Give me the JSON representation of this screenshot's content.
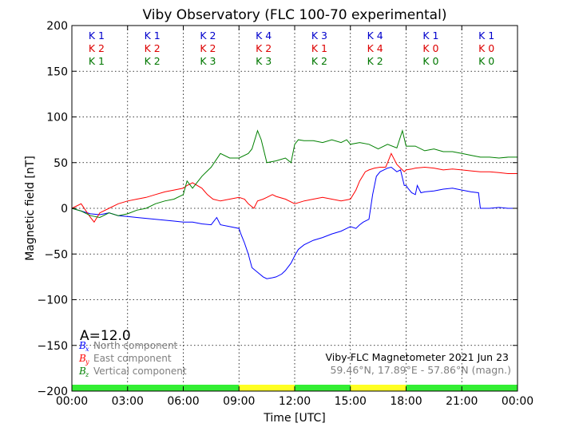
{
  "chart_data": {
    "type": "line",
    "title": "Viby Observatory (FLC 100-70 experimental)",
    "xlabel": "Time [UTC]",
    "ylabel": "Magnetic field [nT]",
    "xlim": [
      0,
      24
    ],
    "ylim": [
      -200,
      200
    ],
    "grid": true,
    "x_tick_labels": [
      "00:00",
      "03:00",
      "06:00",
      "09:00",
      "12:00",
      "15:00",
      "18:00",
      "21:00",
      "00:00"
    ],
    "y_ticks": [
      200,
      150,
      100,
      50,
      0,
      -50,
      -100,
      -150,
      -200
    ],
    "y_tick_labels": [
      "200",
      "150",
      "100",
      "50",
      "0",
      "−50",
      "−100",
      "−150",
      "−200"
    ],
    "k_index_rows": [
      {
        "color": "#0000cc",
        "values": [
          "K 1",
          "K 1",
          "K 2",
          "K 4",
          "K 3",
          "K 4",
          "K 1",
          "K 1"
        ]
      },
      {
        "color": "#dd0000",
        "values": [
          "K 2",
          "K 2",
          "K 2",
          "K 2",
          "K 1",
          "K 4",
          "K 0",
          "K 0"
        ]
      },
      {
        "color": "#007700",
        "values": [
          "K 1",
          "K 2",
          "K 3",
          "K 3",
          "K 2",
          "K 2",
          "K 0",
          "K 0"
        ]
      }
    ],
    "activity_bar": [
      {
        "from": 0,
        "to": 9,
        "color": "#33ee33"
      },
      {
        "from": 9,
        "to": 12,
        "color": "#ffff22"
      },
      {
        "from": 12,
        "to": 15,
        "color": "#33ee33"
      },
      {
        "from": 15,
        "to": 18,
        "color": "#ffff22"
      },
      {
        "from": 18,
        "to": 24,
        "color": "#33ee33"
      }
    ],
    "a_index": "A=12.0",
    "legend": [
      {
        "symbol": "B",
        "sub": "x",
        "text": "North component",
        "color": "#0000ff"
      },
      {
        "symbol": "B",
        "sub": "y",
        "text": "East component",
        "color": "#ff0000"
      },
      {
        "symbol": "B",
        "sub": "z",
        "text": "Vertical component",
        "color": "#008000"
      }
    ],
    "info_line1": "Viby-FLC Magnetometer 2021 Jun 23",
    "info_line2": "59.46°N, 17.89°E - 57.86°N (magn.)",
    "series": [
      {
        "name": "North component",
        "color": "#0000ff",
        "x": [
          0,
          0.5,
          1,
          1.5,
          2,
          2.5,
          3,
          3.5,
          4,
          4.5,
          5,
          5.5,
          6,
          6.5,
          7,
          7.5,
          7.8,
          8,
          8.5,
          9,
          9.1,
          9.3,
          9.5,
          9.7,
          10,
          10.3,
          10.5,
          10.8,
          11,
          11.3,
          11.5,
          11.8,
          12,
          12.2,
          12.5,
          13,
          13.5,
          14,
          14.5,
          14.8,
          15,
          15.3,
          15.5,
          15.7,
          16,
          16.2,
          16.4,
          16.6,
          16.8,
          17,
          17.2,
          17.5,
          17.7,
          17.9,
          18,
          18.1,
          18.3,
          18.5,
          18.6,
          18.8,
          19,
          19.5,
          20,
          20.5,
          21,
          21.5,
          21.9,
          22,
          22.5,
          23,
          23.5,
          24
        ],
        "y": [
          0,
          -3,
          -6,
          -7,
          -5,
          -8,
          -9,
          -10,
          -11,
          -12,
          -13,
          -14,
          -15,
          -15,
          -17,
          -18,
          -10,
          -18,
          -20,
          -22,
          -28,
          -38,
          -50,
          -65,
          -70,
          -75,
          -77,
          -76,
          -75,
          -72,
          -68,
          -60,
          -52,
          -45,
          -40,
          -35,
          -32,
          -28,
          -25,
          -22,
          -20,
          -22,
          -18,
          -15,
          -12,
          15,
          35,
          40,
          42,
          44,
          45,
          40,
          42,
          25,
          25,
          22,
          17,
          15,
          25,
          17,
          18,
          19,
          21,
          22,
          20,
          18,
          17,
          0,
          0,
          1,
          0,
          0
        ]
      },
      {
        "name": "East component",
        "color": "#ff0000",
        "x": [
          0,
          0.5,
          1,
          1.2,
          1.5,
          2,
          2.5,
          3,
          3.5,
          4,
          4.5,
          5,
          5.5,
          6,
          6.2,
          6.5,
          7,
          7.3,
          7.6,
          8,
          8.5,
          9,
          9.3,
          9.5,
          9.8,
          10,
          10.3,
          10.5,
          10.8,
          11,
          11.5,
          12,
          12.5,
          13,
          13.5,
          14,
          14.5,
          15,
          15.3,
          15.5,
          15.8,
          16,
          16.3,
          16.6,
          16.9,
          17,
          17.2,
          17.5,
          17.7,
          17.9,
          18,
          18.3,
          18.5,
          19,
          19.5,
          20,
          20.5,
          21,
          21.5,
          22,
          22.5,
          23,
          23.5,
          24
        ],
        "y": [
          0,
          5,
          -10,
          -15,
          -5,
          0,
          5,
          8,
          10,
          12,
          15,
          18,
          20,
          22,
          25,
          28,
          22,
          15,
          10,
          8,
          10,
          12,
          10,
          5,
          0,
          8,
          10,
          12,
          15,
          13,
          10,
          5,
          8,
          10,
          12,
          10,
          8,
          10,
          20,
          30,
          40,
          42,
          44,
          45,
          45,
          50,
          60,
          48,
          44,
          40,
          42,
          43,
          44,
          45,
          44,
          42,
          43,
          42,
          41,
          40,
          40,
          39,
          38,
          38
        ]
      },
      {
        "name": "Vertical component",
        "color": "#008000",
        "x": [
          0,
          0.5,
          1,
          1.5,
          2,
          2.5,
          3,
          3.5,
          4,
          4.5,
          5,
          5.5,
          6,
          6.2,
          6.5,
          7,
          7.5,
          8,
          8.5,
          9,
          9.5,
          9.7,
          10,
          10.2,
          10.5,
          11,
          11.5,
          11.8,
          12,
          12.2,
          12.5,
          13,
          13.5,
          14,
          14.5,
          14.8,
          15,
          15.5,
          16,
          16.5,
          17,
          17.5,
          17.8,
          18,
          18.5,
          19,
          19.5,
          20,
          20.5,
          21,
          21.5,
          22,
          22.5,
          23,
          23.5,
          24
        ],
        "y": [
          0,
          -3,
          -8,
          -10,
          -5,
          -8,
          -6,
          -2,
          0,
          5,
          8,
          10,
          15,
          30,
          22,
          35,
          45,
          60,
          55,
          55,
          60,
          65,
          85,
          75,
          50,
          52,
          55,
          50,
          70,
          75,
          74,
          74,
          72,
          75,
          72,
          75,
          70,
          72,
          70,
          65,
          70,
          66,
          85,
          68,
          68,
          63,
          65,
          62,
          62,
          60,
          58,
          56,
          56,
          55,
          56,
          56
        ]
      }
    ]
  }
}
